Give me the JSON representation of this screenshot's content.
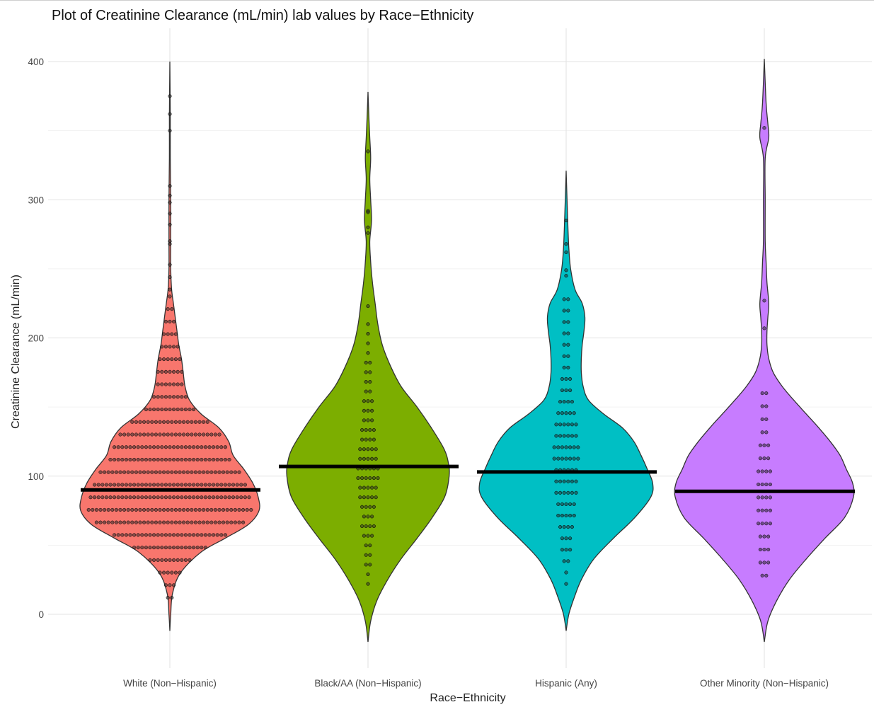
{
  "chart_data": {
    "type": "violin",
    "title": "Plot of Creatinine Clearance (mL/min) lab values  by Race−Ethnicity",
    "xlabel": "Race−Ethnicity",
    "ylabel": "Creatinine Clearance (mL/min)",
    "ylim": [
      -25,
      410
    ],
    "yticks": [
      0,
      100,
      200,
      300,
      400
    ],
    "grid": true,
    "categories": [
      "White (Non−Hispanic)",
      "Black/AA (Non−Hispanic)",
      "Hispanic (Any)",
      "Other Minority (Non−Hispanic)"
    ],
    "colors": [
      "#F8766D",
      "#7CAE00",
      "#00BFC4",
      "#C77CFF"
    ],
    "median_line_color": "#000000",
    "dot_fill": "#2a2a2a",
    "groups": [
      {
        "name": "White (Non−Hispanic)",
        "median": 90,
        "range": [
          -12,
          400
        ],
        "density": [
          [
            -12,
            0
          ],
          [
            0,
            1
          ],
          [
            15,
            3
          ],
          [
            30,
            12
          ],
          [
            45,
            35
          ],
          [
            55,
            62
          ],
          [
            65,
            88
          ],
          [
            75,
            100
          ],
          [
            85,
            99
          ],
          [
            95,
            93
          ],
          [
            105,
            83
          ],
          [
            115,
            71
          ],
          [
            125,
            66
          ],
          [
            135,
            55
          ],
          [
            145,
            35
          ],
          [
            155,
            22
          ],
          [
            165,
            17
          ],
          [
            175,
            15
          ],
          [
            185,
            13
          ],
          [
            195,
            10
          ],
          [
            205,
            8
          ],
          [
            215,
            6
          ],
          [
            225,
            4
          ],
          [
            235,
            2
          ],
          [
            250,
            1
          ],
          [
            270,
            1
          ],
          [
            300,
            1
          ],
          [
            330,
            0.5
          ],
          [
            360,
            0.5
          ],
          [
            400,
            0
          ]
        ],
        "dots": {
          "n_bins": 25,
          "counts": [
            4,
            24,
            48,
            72,
            92,
            100,
            98,
            94,
            86,
            76,
            66,
            58,
            50,
            38,
            28,
            20,
            16,
            13,
            11,
            9,
            7,
            5,
            3,
            2,
            1
          ],
          "bin_range": [
            12,
            230
          ],
          "outliers": [
            235,
            244,
            253,
            268,
            270,
            282,
            290,
            298,
            303,
            310,
            350,
            362,
            375
          ]
        }
      },
      {
        "name": "Black/AA (Non−Hispanic)",
        "median": 107,
        "range": [
          -20,
          378
        ],
        "density": [
          [
            -20,
            0
          ],
          [
            -5,
            3
          ],
          [
            10,
            10
          ],
          [
            25,
            22
          ],
          [
            40,
            37
          ],
          [
            55,
            55
          ],
          [
            70,
            72
          ],
          [
            85,
            86
          ],
          [
            100,
            91
          ],
          [
            110,
            90
          ],
          [
            120,
            85
          ],
          [
            135,
            71
          ],
          [
            150,
            55
          ],
          [
            165,
            37
          ],
          [
            180,
            25
          ],
          [
            195,
            16
          ],
          [
            210,
            11
          ],
          [
            225,
            8
          ],
          [
            240,
            5
          ],
          [
            255,
            3
          ],
          [
            270,
            2
          ],
          [
            285,
            4
          ],
          [
            300,
            3
          ],
          [
            315,
            2
          ],
          [
            330,
            3
          ],
          [
            345,
            2
          ],
          [
            360,
            1
          ],
          [
            378,
            0
          ]
        ],
        "dots": {
          "n_bins": 28,
          "counts": [
            1,
            1,
            2,
            2,
            2,
            3,
            4,
            3,
            4,
            5,
            5,
            6,
            6,
            5,
            5,
            4,
            4,
            3,
            3,
            3,
            2,
            2,
            2,
            2,
            1,
            1,
            1,
            1
          ],
          "bin_range": [
            22,
            210
          ],
          "outliers": [
            223,
            276,
            280,
            291,
            292,
            335
          ]
        }
      },
      {
        "name": "Hispanic (Any)",
        "median": 103,
        "range": [
          -12,
          321
        ],
        "density": [
          [
            -12,
            0
          ],
          [
            0,
            3
          ],
          [
            12,
            9
          ],
          [
            25,
            17
          ],
          [
            40,
            31
          ],
          [
            55,
            53
          ],
          [
            70,
            77
          ],
          [
            85,
            95
          ],
          [
            95,
            97
          ],
          [
            105,
            91
          ],
          [
            115,
            84
          ],
          [
            125,
            76
          ],
          [
            135,
            63
          ],
          [
            145,
            42
          ],
          [
            155,
            25
          ],
          [
            165,
            19
          ],
          [
            175,
            17
          ],
          [
            185,
            17
          ],
          [
            195,
            18
          ],
          [
            205,
            20
          ],
          [
            215,
            21
          ],
          [
            225,
            18
          ],
          [
            235,
            10
          ],
          [
            250,
            5
          ],
          [
            265,
            3
          ],
          [
            280,
            2
          ],
          [
            300,
            1
          ],
          [
            321,
            0
          ]
        ],
        "dots": {
          "n_bins": 26,
          "counts": [
            1,
            1,
            2,
            3,
            3,
            4,
            5,
            5,
            6,
            6,
            6,
            7,
            7,
            6,
            6,
            5,
            4,
            3,
            3,
            2,
            2,
            2,
            2,
            2,
            2,
            2
          ],
          "bin_range": [
            22,
            228
          ],
          "outliers": [
            245,
            249,
            262,
            268,
            285
          ]
        }
      },
      {
        "name": "Other Minority (Non−Hispanic)",
        "median": 89,
        "range": [
          -20,
          402
        ],
        "density": [
          [
            -20,
            0
          ],
          [
            -5,
            4
          ],
          [
            10,
            14
          ],
          [
            25,
            28
          ],
          [
            40,
            47
          ],
          [
            55,
            68
          ],
          [
            70,
            90
          ],
          [
            85,
            100
          ],
          [
            95,
            99
          ],
          [
            105,
            92
          ],
          [
            115,
            85
          ],
          [
            125,
            74
          ],
          [
            135,
            61
          ],
          [
            145,
            47
          ],
          [
            155,
            33
          ],
          [
            165,
            20
          ],
          [
            175,
            10
          ],
          [
            185,
            5
          ],
          [
            195,
            3
          ],
          [
            205,
            3
          ],
          [
            215,
            4
          ],
          [
            225,
            5
          ],
          [
            240,
            3
          ],
          [
            255,
            2
          ],
          [
            270,
            1
          ],
          [
            300,
            1
          ],
          [
            330,
            1
          ],
          [
            345,
            5
          ],
          [
            355,
            4
          ],
          [
            370,
            2
          ],
          [
            402,
            0
          ]
        ],
        "dots": {
          "n_bins": 15,
          "counts": [
            2,
            3,
            3,
            3,
            4,
            4,
            4,
            4,
            4,
            3,
            3,
            2,
            2,
            2,
            2
          ],
          "bin_range": [
            28,
            160
          ],
          "outliers": [
            207,
            227,
            352
          ]
        }
      }
    ]
  }
}
